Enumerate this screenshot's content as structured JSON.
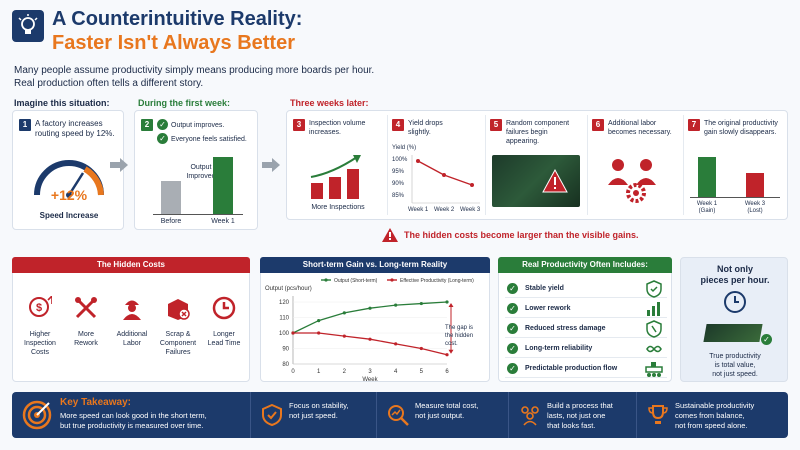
{
  "header": {
    "title_line1": "A Counterintuitive Reality:",
    "title_line2": "Faster Isn't Always Better",
    "intro_line1": "Many people assume productivity simply means producing more boards per hour.",
    "intro_line2": "Real production often tells a different story."
  },
  "sections": {
    "imagine": "Imagine this situation:",
    "first_week": "During the first week:",
    "three_weeks": "Three weeks later:"
  },
  "imagine_card": {
    "number": "1",
    "text_line1": "A factory increases",
    "text_line2": "routing speed by 12%.",
    "gauge_value": "+12%",
    "gauge_label": "Speed Increase"
  },
  "first_week_card": {
    "number": "2",
    "item1": "Output improves.",
    "item2": "Everyone feels satisfied.",
    "chart_annotation_line1": "Output",
    "chart_annotation_line2": "Improved",
    "bar_before_label": "Before",
    "bar_week1_label": "Week 1",
    "bar_before_value": 0.55,
    "bar_week1_value": 1.0
  },
  "three_weeks": {
    "step3": {
      "number": "3",
      "line1": "Inspection volume",
      "line2": "increases.",
      "caption": "More Inspections"
    },
    "step4": {
      "number": "4",
      "line1": "Yield drops",
      "line2": "slightly.",
      "ylabel": "Yield (%)",
      "ticks": [
        "100%",
        "95%",
        "90%",
        "85%"
      ],
      "x_labels": [
        "Week 1",
        "Week 2",
        "Week 3"
      ]
    },
    "step5": {
      "number": "5",
      "line1": "Random component",
      "line2": "failures begin",
      "line3": "appearing."
    },
    "step6": {
      "number": "6",
      "line1": "Additional labor",
      "line2": "becomes necessary."
    },
    "step7": {
      "number": "7",
      "line1": "The original productivity",
      "line2": "gain slowly disappears.",
      "bar1_line1": "Week 1",
      "bar1_line2": "(Gain)",
      "bar2_line1": "Week 3",
      "bar2_line2": "(Lost)"
    }
  },
  "warning": "The hidden costs become larger than the visible gains.",
  "hidden_costs": {
    "title": "The Hidden Costs",
    "items": [
      {
        "line1": "Higher",
        "line2": "Inspection",
        "line3": "Costs",
        "icon": "dollar-up-icon"
      },
      {
        "line1": "More",
        "line2": "Rework",
        "line3": "",
        "icon": "tools-icon"
      },
      {
        "line1": "Additional",
        "line2": "Labor",
        "line3": "",
        "icon": "worker-icon"
      },
      {
        "line1": "Scrap &",
        "line2": "Component",
        "line3": "Failures",
        "icon": "scrap-box-icon"
      },
      {
        "line1": "Longer",
        "line2": "Lead Time",
        "line3": "",
        "icon": "clock-icon"
      }
    ]
  },
  "chart_section": {
    "title": "Short-term Gain vs. Long-term Reality",
    "gap_line1": "The gap is",
    "gap_line2": "the hidden",
    "gap_line3": "cost."
  },
  "chart_data": {
    "type": "line",
    "ylabel": "Output (pcs/hour)",
    "xlabel": "Week",
    "x": [
      0,
      1,
      2,
      3,
      4,
      5,
      6
    ],
    "ylim": [
      80,
      120
    ],
    "yticks": [
      80,
      90,
      100,
      110,
      120
    ],
    "legend_position": "top",
    "series": [
      {
        "name": "Output (Short-term)",
        "color": "#2a7d3a",
        "values": [
          100,
          108,
          113,
          116,
          118,
          119,
          120
        ]
      },
      {
        "name": "Effective Productivity (Long-term)",
        "color": "#c0232a",
        "values": [
          100,
          100,
          98,
          96,
          93,
          90,
          86
        ]
      }
    ]
  },
  "real_productivity": {
    "title": "Real Productivity Often Includes:",
    "items": [
      "Stable yield",
      "Lower rework",
      "Reduced stress damage",
      "Long-term reliability",
      "Predictable production flow"
    ]
  },
  "not_only": {
    "line1": "Not only",
    "line2": "pieces per hour.",
    "bottom_line1": "True productivity",
    "bottom_line2": "is total value,",
    "bottom_line3": "not just speed."
  },
  "footer": {
    "takeaway_title": "Key Takeaway:",
    "takeaway_line1": "More speed can look good in the short term,",
    "takeaway_line2": "but true productivity is measured over time.",
    "items": [
      {
        "line1": "Focus on stability,",
        "line2": "not just speed.",
        "line3": ""
      },
      {
        "line1": "Measure total cost,",
        "line2": "not just output.",
        "line3": ""
      },
      {
        "line1": "Build a process that",
        "line2": "lasts, not just one",
        "line3": "that looks fast."
      },
      {
        "line1": "Sustainable productivity",
        "line2": "comes from balance,",
        "line3": "not from speed alone."
      }
    ]
  },
  "colors": {
    "navy": "#1c3a6b",
    "orange": "#e8771e",
    "green": "#2a7d3a",
    "red": "#c0232a"
  }
}
